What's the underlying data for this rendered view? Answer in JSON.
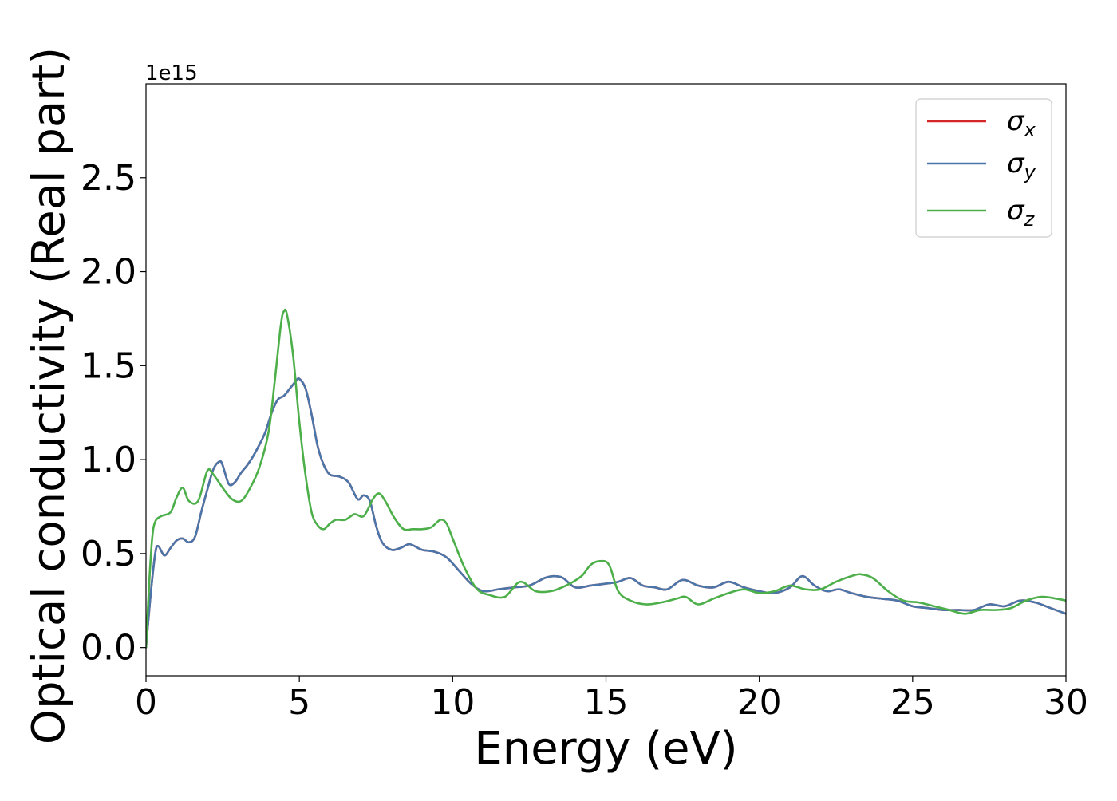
{
  "chart_data": {
    "type": "line",
    "xlabel": "Energy (eV)",
    "ylabel": "Optical conductivity (Real part)",
    "y_offset_label": "1e15",
    "xlim": [
      0,
      30
    ],
    "ylim": [
      -0.15,
      3.0
    ],
    "xticks": [
      0,
      5,
      10,
      15,
      20,
      25,
      30
    ],
    "yticks": [
      0.0,
      0.5,
      1.0,
      1.5,
      2.0,
      2.5
    ],
    "xtick_labels": [
      "0",
      "5",
      "10",
      "15",
      "20",
      "25",
      "30"
    ],
    "ytick_labels": [
      "0.0",
      "0.5",
      "1.0",
      "1.5",
      "2.0",
      "2.5"
    ],
    "grid": false,
    "legend_position": "top-right",
    "series": [
      {
        "name": "σx",
        "label_base": "σ",
        "label_sub": "x",
        "color": "#d62728",
        "x": [
          0,
          0.15,
          0.3,
          0.4,
          0.6,
          0.8,
          1.0,
          1.2,
          1.4,
          1.6,
          1.8,
          2.0,
          2.2,
          2.4,
          2.5,
          2.7,
          2.9,
          3.1,
          3.3,
          3.5,
          3.7,
          3.9,
          4.1,
          4.3,
          4.5,
          4.7,
          4.9,
          5.0,
          5.2,
          5.4,
          5.6,
          5.8,
          6.0,
          6.3,
          6.6,
          6.9,
          7.1,
          7.3,
          7.5,
          7.7,
          8.0,
          8.3,
          8.6,
          9.0,
          9.4,
          9.8,
          10.2,
          10.6,
          11.0,
          11.5,
          12.0,
          12.5,
          13.0,
          13.3,
          13.6,
          14.0,
          14.5,
          15.0,
          15.4,
          15.8,
          16.2,
          16.6,
          17.0,
          17.5,
          18.0,
          18.5,
          19.0,
          19.5,
          20.0,
          20.5,
          21.0,
          21.4,
          21.8,
          22.2,
          22.6,
          23.0,
          23.5,
          24.0,
          24.5,
          25.0,
          25.5,
          26.0,
          26.5,
          27.0,
          27.5,
          28.0,
          28.5,
          29.0,
          29.5,
          30.0
        ],
        "y": [
          0.0,
          0.28,
          0.5,
          0.54,
          0.49,
          0.53,
          0.57,
          0.58,
          0.56,
          0.59,
          0.72,
          0.84,
          0.95,
          0.99,
          0.97,
          0.87,
          0.88,
          0.93,
          0.97,
          1.02,
          1.08,
          1.15,
          1.25,
          1.32,
          1.34,
          1.38,
          1.42,
          1.43,
          1.38,
          1.24,
          1.07,
          0.97,
          0.92,
          0.91,
          0.88,
          0.79,
          0.81,
          0.78,
          0.65,
          0.56,
          0.52,
          0.53,
          0.55,
          0.52,
          0.51,
          0.48,
          0.41,
          0.34,
          0.3,
          0.31,
          0.32,
          0.33,
          0.37,
          0.38,
          0.37,
          0.32,
          0.33,
          0.34,
          0.35,
          0.37,
          0.33,
          0.32,
          0.31,
          0.36,
          0.33,
          0.32,
          0.35,
          0.32,
          0.3,
          0.29,
          0.32,
          0.38,
          0.33,
          0.3,
          0.31,
          0.29,
          0.27,
          0.26,
          0.25,
          0.22,
          0.21,
          0.2,
          0.2,
          0.2,
          0.23,
          0.22,
          0.25,
          0.24,
          0.21,
          0.18
        ]
      },
      {
        "name": "σy",
        "label_base": "σ",
        "label_sub": "y",
        "color": "#4a76aa",
        "x": [
          0,
          0.15,
          0.3,
          0.4,
          0.6,
          0.8,
          1.0,
          1.2,
          1.4,
          1.6,
          1.8,
          2.0,
          2.2,
          2.4,
          2.5,
          2.7,
          2.9,
          3.1,
          3.3,
          3.5,
          3.7,
          3.9,
          4.1,
          4.3,
          4.5,
          4.7,
          4.9,
          5.0,
          5.2,
          5.4,
          5.6,
          5.8,
          6.0,
          6.3,
          6.6,
          6.9,
          7.1,
          7.3,
          7.5,
          7.7,
          8.0,
          8.3,
          8.6,
          9.0,
          9.4,
          9.8,
          10.2,
          10.6,
          11.0,
          11.5,
          12.0,
          12.5,
          13.0,
          13.3,
          13.6,
          14.0,
          14.5,
          15.0,
          15.4,
          15.8,
          16.2,
          16.6,
          17.0,
          17.5,
          18.0,
          18.5,
          19.0,
          19.5,
          20.0,
          20.5,
          21.0,
          21.4,
          21.8,
          22.2,
          22.6,
          23.0,
          23.5,
          24.0,
          24.5,
          25.0,
          25.5,
          26.0,
          26.5,
          27.0,
          27.5,
          28.0,
          28.5,
          29.0,
          29.5,
          30.0
        ],
        "y": [
          0.0,
          0.28,
          0.5,
          0.54,
          0.49,
          0.53,
          0.57,
          0.58,
          0.56,
          0.59,
          0.72,
          0.84,
          0.95,
          0.99,
          0.97,
          0.87,
          0.88,
          0.93,
          0.97,
          1.02,
          1.08,
          1.15,
          1.25,
          1.32,
          1.34,
          1.38,
          1.42,
          1.43,
          1.38,
          1.24,
          1.07,
          0.97,
          0.92,
          0.91,
          0.88,
          0.79,
          0.81,
          0.78,
          0.65,
          0.56,
          0.52,
          0.53,
          0.55,
          0.52,
          0.51,
          0.48,
          0.41,
          0.34,
          0.3,
          0.31,
          0.32,
          0.33,
          0.37,
          0.38,
          0.37,
          0.32,
          0.33,
          0.34,
          0.35,
          0.37,
          0.33,
          0.32,
          0.31,
          0.36,
          0.33,
          0.32,
          0.35,
          0.32,
          0.3,
          0.29,
          0.32,
          0.38,
          0.33,
          0.3,
          0.31,
          0.29,
          0.27,
          0.26,
          0.25,
          0.22,
          0.21,
          0.2,
          0.2,
          0.2,
          0.23,
          0.22,
          0.25,
          0.24,
          0.21,
          0.18
        ]
      },
      {
        "name": "σz",
        "label_base": "σ",
        "label_sub": "z",
        "color": "#4daf4a",
        "x": [
          0,
          0.1,
          0.2,
          0.3,
          0.5,
          0.8,
          1.0,
          1.2,
          1.4,
          1.7,
          2.0,
          2.2,
          2.5,
          2.8,
          3.1,
          3.4,
          3.7,
          4.0,
          4.2,
          4.4,
          4.5,
          4.6,
          4.8,
          5.0,
          5.2,
          5.4,
          5.6,
          5.8,
          6.0,
          6.2,
          6.5,
          6.8,
          7.1,
          7.4,
          7.6,
          7.8,
          8.1,
          8.4,
          8.7,
          9.0,
          9.3,
          9.6,
          9.8,
          10.0,
          10.4,
          10.8,
          11.2,
          11.7,
          12.2,
          12.7,
          13.2,
          13.7,
          14.2,
          14.5,
          14.8,
          15.1,
          15.4,
          15.8,
          16.3,
          16.8,
          17.3,
          17.6,
          18.0,
          18.5,
          19.0,
          19.5,
          20.0,
          20.5,
          21.0,
          21.5,
          22.0,
          22.5,
          23.0,
          23.3,
          23.7,
          24.2,
          24.7,
          25.2,
          25.7,
          26.2,
          26.7,
          27.2,
          27.7,
          28.2,
          28.7,
          29.2,
          29.7,
          30.0
        ],
        "y": [
          0.0,
          0.33,
          0.58,
          0.67,
          0.7,
          0.72,
          0.8,
          0.85,
          0.78,
          0.78,
          0.94,
          0.92,
          0.85,
          0.79,
          0.78,
          0.85,
          0.96,
          1.15,
          1.42,
          1.72,
          1.79,
          1.77,
          1.55,
          1.2,
          0.92,
          0.72,
          0.65,
          0.63,
          0.66,
          0.68,
          0.68,
          0.71,
          0.7,
          0.79,
          0.82,
          0.78,
          0.69,
          0.63,
          0.63,
          0.63,
          0.64,
          0.68,
          0.66,
          0.58,
          0.42,
          0.31,
          0.28,
          0.27,
          0.35,
          0.3,
          0.3,
          0.33,
          0.38,
          0.44,
          0.46,
          0.44,
          0.3,
          0.25,
          0.23,
          0.24,
          0.26,
          0.27,
          0.23,
          0.26,
          0.29,
          0.31,
          0.29,
          0.3,
          0.33,
          0.31,
          0.31,
          0.35,
          0.38,
          0.39,
          0.37,
          0.3,
          0.25,
          0.24,
          0.22,
          0.2,
          0.18,
          0.2,
          0.2,
          0.21,
          0.25,
          0.27,
          0.26,
          0.25
        ]
      }
    ]
  }
}
